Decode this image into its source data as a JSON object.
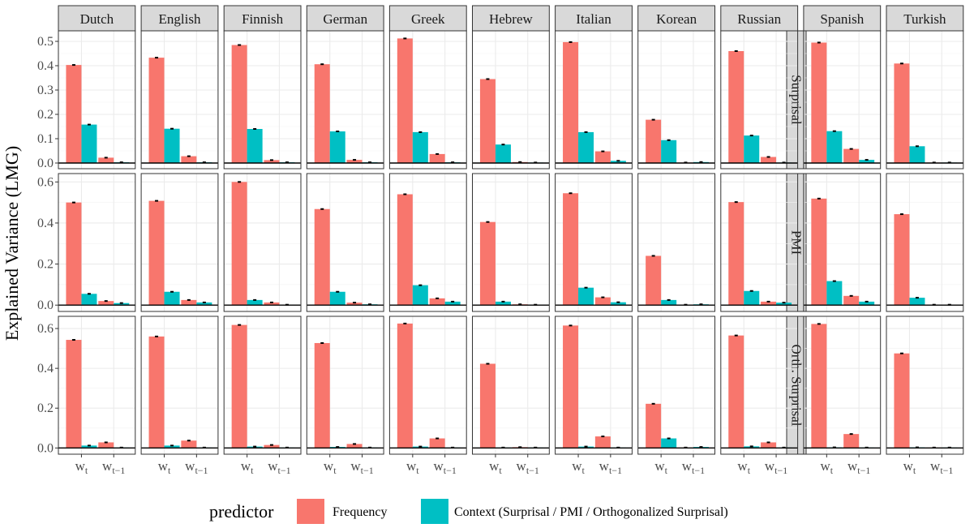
{
  "y_axis_title": "Explained Variance (LMG)",
  "x_tick_labels": [
    {
      "base": "w",
      "sub": "t"
    },
    {
      "base": "w",
      "sub": "t−1"
    }
  ],
  "legend": {
    "title": "predictor",
    "entries": [
      {
        "label": "Frequency",
        "color": "#F8766D"
      },
      {
        "label": "Context (Surprisal / PMI / Orthogonalized Surprisal)",
        "color": "#00BFC4"
      }
    ]
  },
  "chart_data": {
    "type": "bar",
    "facet_columns": [
      "Dutch",
      "English",
      "Finnish",
      "German",
      "Greek",
      "Hebrew",
      "Italian",
      "Korean",
      "Russian",
      "Spanish",
      "Turkish"
    ],
    "categories": [
      "w_t",
      "w_t-1"
    ],
    "series_order": [
      "Frequency",
      "Context"
    ],
    "colors": {
      "Frequency": "#F8766D",
      "Context": "#00BFC4"
    },
    "rows": [
      {
        "strip": "Surprisal",
        "ylim": [
          -0.01,
          0.53
        ],
        "ticks": [
          0.0,
          0.1,
          0.2,
          0.3,
          0.4,
          0.5
        ],
        "tick_labels": [
          "0.0",
          "0.1",
          "0.2",
          "0.3",
          "0.4",
          "0.5"
        ],
        "values": {
          "Dutch": [
            [
              0.403,
              0.158
            ],
            [
              0.022,
              0.003
            ]
          ],
          "English": [
            [
              0.433,
              0.141
            ],
            [
              0.028,
              0.003
            ]
          ],
          "Finnish": [
            [
              0.485,
              0.14
            ],
            [
              0.012,
              0.003
            ]
          ],
          "German": [
            [
              0.406,
              0.13
            ],
            [
              0.013,
              0.003
            ]
          ],
          "Greek": [
            [
              0.512,
              0.127
            ],
            [
              0.037,
              0.003
            ]
          ],
          "Hebrew": [
            [
              0.345,
              0.076
            ],
            [
              0.004,
              0.002
            ]
          ],
          "Italian": [
            [
              0.497,
              0.127
            ],
            [
              0.048,
              0.009
            ]
          ],
          "Korean": [
            [
              0.178,
              0.094
            ],
            [
              0.002,
              0.004
            ]
          ],
          "Russian": [
            [
              0.46,
              0.113
            ],
            [
              0.025,
              0.002
            ]
          ],
          "Spanish": [
            [
              0.495,
              0.131
            ],
            [
              0.058,
              0.013
            ]
          ],
          "Turkish": [
            [
              0.409,
              0.069
            ],
            [
              0.002,
              0.002
            ]
          ]
        }
      },
      {
        "strip": "PMI",
        "ylim": [
          -0.015,
          0.625
        ],
        "ticks": [
          0.0,
          0.2,
          0.4,
          0.6
        ],
        "tick_labels": [
          "0.0",
          "0.2",
          "0.4",
          "0.6"
        ],
        "values": {
          "Dutch": [
            [
              0.5,
              0.055
            ],
            [
              0.02,
              0.01
            ]
          ],
          "English": [
            [
              0.508,
              0.065
            ],
            [
              0.025,
              0.013
            ]
          ],
          "Finnish": [
            [
              0.6,
              0.025
            ],
            [
              0.013,
              0.002
            ]
          ],
          "German": [
            [
              0.468,
              0.065
            ],
            [
              0.012,
              0.004
            ]
          ],
          "Greek": [
            [
              0.54,
              0.097
            ],
            [
              0.033,
              0.017
            ]
          ],
          "Hebrew": [
            [
              0.405,
              0.017
            ],
            [
              0.004,
              0.002
            ]
          ],
          "Italian": [
            [
              0.545,
              0.085
            ],
            [
              0.038,
              0.014
            ]
          ],
          "Korean": [
            [
              0.24,
              0.025
            ],
            [
              0.002,
              0.004
            ]
          ],
          "Russian": [
            [
              0.502,
              0.069
            ],
            [
              0.017,
              0.012
            ]
          ],
          "Spanish": [
            [
              0.519,
              0.117
            ],
            [
              0.045,
              0.017
            ]
          ],
          "Turkish": [
            [
              0.443,
              0.036
            ],
            [
              0.002,
              0.002
            ]
          ]
        }
      },
      {
        "strip": "Orth. Surprisal",
        "ylim": [
          -0.015,
          0.645
        ],
        "ticks": [
          0.0,
          0.2,
          0.4,
          0.6
        ],
        "tick_labels": [
          "0.0",
          "0.2",
          "0.4",
          "0.6"
        ],
        "values": {
          "Dutch": [
            [
              0.543,
              0.012
            ],
            [
              0.028,
              0.002
            ]
          ],
          "English": [
            [
              0.56,
              0.012
            ],
            [
              0.037,
              0.002
            ]
          ],
          "Finnish": [
            [
              0.618,
              0.007
            ],
            [
              0.015,
              0.002
            ]
          ],
          "German": [
            [
              0.527,
              0.005
            ],
            [
              0.02,
              0.002
            ]
          ],
          "Greek": [
            [
              0.625,
              0.007
            ],
            [
              0.048,
              0.002
            ]
          ],
          "Hebrew": [
            [
              0.423,
              0.002
            ],
            [
              0.004,
              0.002
            ]
          ],
          "Italian": [
            [
              0.615,
              0.007
            ],
            [
              0.058,
              0.002
            ]
          ],
          "Korean": [
            [
              0.222,
              0.048
            ],
            [
              0.002,
              0.005
            ]
          ],
          "Russian": [
            [
              0.565,
              0.008
            ],
            [
              0.028,
              0.002
            ]
          ],
          "Spanish": [
            [
              0.623,
              0.003
            ],
            [
              0.07,
              0.002
            ]
          ],
          "Turkish": [
            [
              0.475,
              0.003
            ],
            [
              0.002,
              0.002
            ]
          ]
        }
      }
    ],
    "grid": true,
    "legend_position": "bottom"
  }
}
